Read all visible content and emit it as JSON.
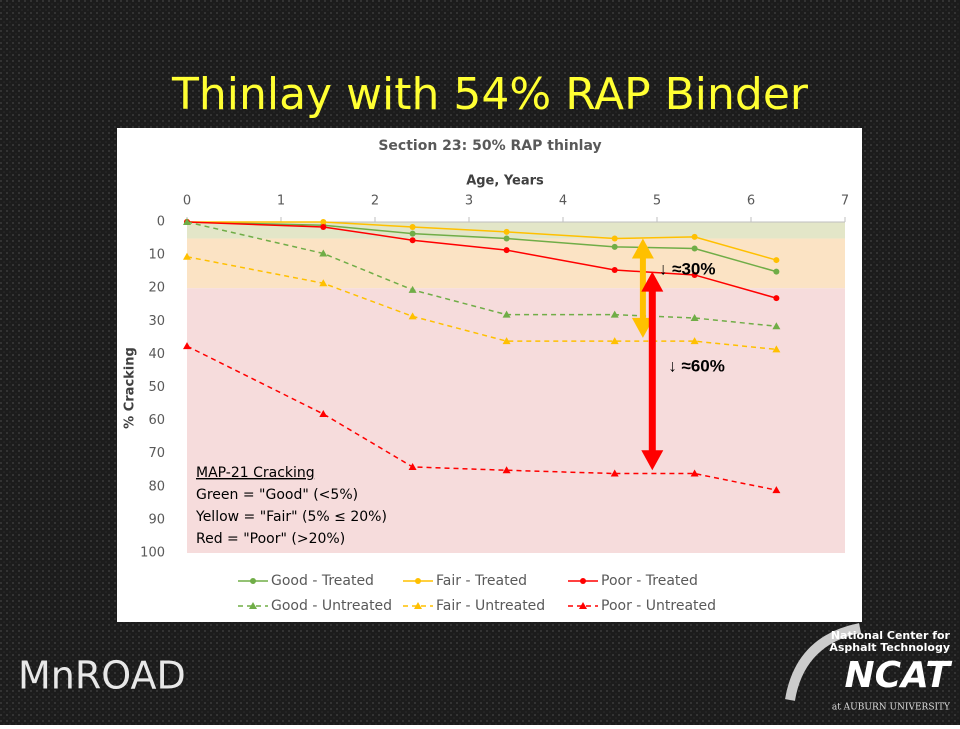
{
  "slide": {
    "title": "Thinlay with 54% RAP Binder",
    "logo_left": "MnROAD",
    "logo_right": {
      "line1": "National Center for",
      "line2": "Asphalt Technology",
      "name": "NCAT",
      "sub": "at AUBURN UNIVERSITY"
    }
  },
  "chart_data": {
    "type": "line",
    "title": "Section 23: 50% RAP thinlay",
    "x_label": "Age, Years",
    "y_label": "% Cracking",
    "x": [
      0,
      1.45,
      2.4,
      3.4,
      4.55,
      5.4,
      6.27
    ],
    "xlim": [
      0,
      7
    ],
    "xticks": [
      0,
      1,
      2,
      3,
      4,
      5,
      6,
      7
    ],
    "ylim": [
      0,
      100
    ],
    "yticks": [
      0,
      10,
      20,
      30,
      40,
      50,
      60,
      70,
      80,
      90,
      100
    ],
    "y_inverted": true,
    "x_axis_position": "top",
    "bands": [
      {
        "from": 0,
        "to": 5,
        "color": "#e3e6c8"
      },
      {
        "from": 5,
        "to": 20,
        "color": "#fbe3c4"
      },
      {
        "from": 20,
        "to": 100,
        "color": "#f6dcdc"
      }
    ],
    "series": [
      {
        "name": "Good - Treated",
        "color": "#70ad47",
        "dashed": false,
        "marker": "circle",
        "values": [
          0,
          1,
          3.5,
          5,
          7.5,
          8,
          15
        ]
      },
      {
        "name": "Fair - Treated",
        "color": "#ffc000",
        "dashed": false,
        "marker": "circle",
        "values": [
          0,
          0,
          1.5,
          3,
          5,
          4.5,
          11.5
        ]
      },
      {
        "name": "Poor - Treated",
        "color": "#ff0000",
        "dashed": false,
        "marker": "circle",
        "values": [
          0,
          1.5,
          5.5,
          8.5,
          14.5,
          16,
          23
        ]
      },
      {
        "name": "Good - Untreated",
        "color": "#70ad47",
        "dashed": true,
        "marker": "triangle",
        "values": [
          0,
          9.5,
          20.5,
          28,
          28,
          29,
          31.5
        ]
      },
      {
        "name": "Fair - Untreated",
        "color": "#ffc000",
        "dashed": true,
        "marker": "triangle",
        "values": [
          10.5,
          18.5,
          28.5,
          36,
          36,
          36,
          38.5
        ]
      },
      {
        "name": "Poor - Untreated",
        "color": "#ff0000",
        "dashed": true,
        "marker": "triangle",
        "values": [
          37.5,
          58,
          74,
          75,
          76,
          76,
          81
        ]
      }
    ],
    "arrows": [
      {
        "label": "↓ ≈30%",
        "x": 4.85,
        "from": 5,
        "to": 35,
        "color": "#ffc000"
      },
      {
        "label": "↓ ≈60%",
        "x": 4.95,
        "from": 15,
        "to": 75,
        "color": "#ff0000"
      }
    ],
    "legend_note": [
      "MAP-21 Cracking",
      "Green = \"Good\" (<5%)",
      "Yellow = \"Fair\" (5% ≤ 20%)",
      "Red = \"Poor\" (>20%)"
    ]
  }
}
